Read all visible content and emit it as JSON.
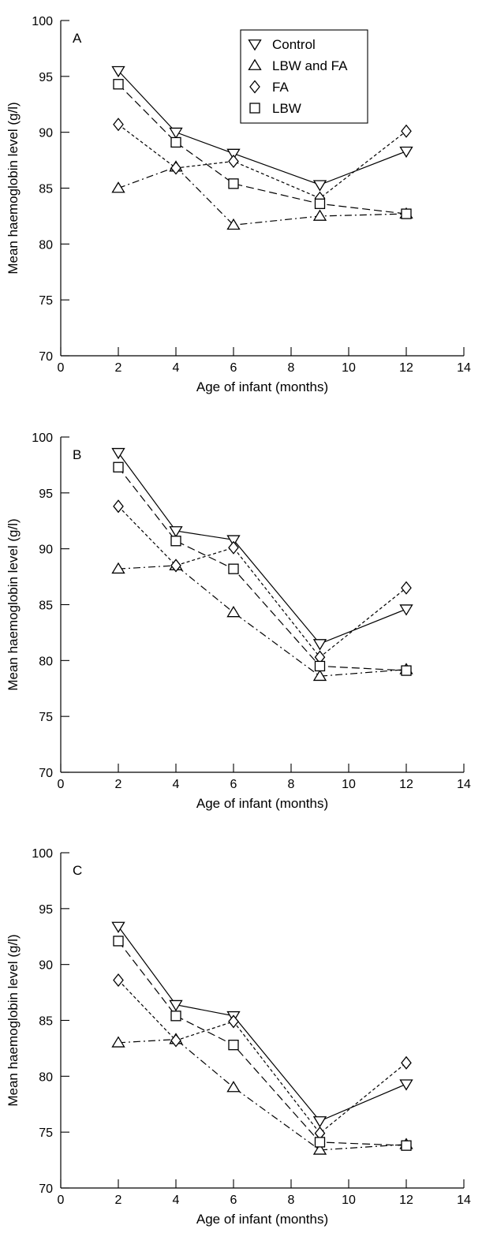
{
  "chart_data": [
    {
      "type": "line",
      "panel_label": "A",
      "xlabel": "Age of infant (months)",
      "ylabel": "Mean haemoglobin level (g/l)",
      "xlim": [
        0,
        14
      ],
      "ylim": [
        70,
        100
      ],
      "xticks": [
        0,
        2,
        4,
        6,
        8,
        10,
        12,
        14
      ],
      "yticks": [
        70,
        75,
        80,
        85,
        90,
        95,
        100
      ],
      "grid": false,
      "legend": "top-center",
      "x": [
        2,
        4,
        6,
        9,
        12
      ],
      "series": [
        {
          "name": "Control",
          "marker": "triangle-down",
          "line": "solid",
          "values": [
            95.5,
            90.0,
            88.1,
            85.3,
            88.3
          ]
        },
        {
          "name": "LBW and FA",
          "marker": "triangle-up",
          "line": "dash-dot",
          "values": [
            85.0,
            86.9,
            81.7,
            82.5,
            82.7
          ]
        },
        {
          "name": "FA",
          "marker": "diamond",
          "line": "dotted",
          "values": [
            90.7,
            86.8,
            87.4,
            84.1,
            90.1
          ]
        },
        {
          "name": "LBW",
          "marker": "square",
          "line": "dashed",
          "values": [
            94.3,
            89.1,
            85.4,
            83.6,
            82.7
          ]
        }
      ]
    },
    {
      "type": "line",
      "panel_label": "B",
      "xlabel": "Age of infant (months)",
      "ylabel": "Mean haemoglobin level (g/l)",
      "xlim": [
        0,
        14
      ],
      "ylim": [
        70,
        100
      ],
      "xticks": [
        0,
        2,
        4,
        6,
        8,
        10,
        12,
        14
      ],
      "yticks": [
        70,
        75,
        80,
        85,
        90,
        95,
        100
      ],
      "grid": false,
      "x": [
        2,
        4,
        6,
        9,
        12
      ],
      "series": [
        {
          "name": "Control",
          "marker": "triangle-down",
          "line": "solid",
          "values": [
            98.6,
            91.6,
            90.8,
            81.5,
            84.6
          ]
        },
        {
          "name": "LBW and FA",
          "marker": "triangle-up",
          "line": "dash-dot",
          "values": [
            88.2,
            88.5,
            84.3,
            78.6,
            79.2
          ]
        },
        {
          "name": "FA",
          "marker": "diamond",
          "line": "dotted",
          "values": [
            93.8,
            88.5,
            90.1,
            80.3,
            86.5
          ]
        },
        {
          "name": "LBW",
          "marker": "square",
          "line": "dashed",
          "values": [
            97.3,
            90.7,
            88.2,
            79.5,
            79.1
          ]
        }
      ]
    },
    {
      "type": "line",
      "panel_label": "C",
      "xlabel": "Age of infant (months)",
      "ylabel": "Mean haemoglobin level (g/l)",
      "xlim": [
        0,
        14
      ],
      "ylim": [
        70,
        100
      ],
      "xticks": [
        0,
        2,
        4,
        6,
        8,
        10,
        12,
        14
      ],
      "yticks": [
        70,
        75,
        80,
        85,
        90,
        95,
        100
      ],
      "grid": false,
      "x": [
        2,
        4,
        6,
        9,
        12
      ],
      "series": [
        {
          "name": "Control",
          "marker": "triangle-down",
          "line": "solid",
          "values": [
            93.4,
            86.4,
            85.4,
            76.0,
            79.3
          ]
        },
        {
          "name": "LBW and FA",
          "marker": "triangle-up",
          "line": "dash-dot",
          "values": [
            83.0,
            83.3,
            79.0,
            73.4,
            73.9
          ]
        },
        {
          "name": "FA",
          "marker": "diamond",
          "line": "dotted",
          "values": [
            88.6,
            83.2,
            84.9,
            74.9,
            81.2
          ]
        },
        {
          "name": "LBW",
          "marker": "square",
          "line": "dashed",
          "values": [
            92.1,
            85.4,
            82.8,
            74.1,
            73.8
          ]
        }
      ]
    }
  ]
}
